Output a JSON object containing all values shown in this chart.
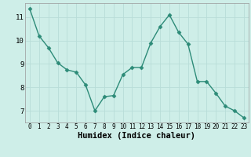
{
  "x": [
    0,
    1,
    2,
    3,
    4,
    5,
    6,
    7,
    8,
    9,
    10,
    11,
    12,
    13,
    14,
    15,
    16,
    17,
    18,
    19,
    20,
    21,
    22,
    23
  ],
  "y": [
    11.35,
    10.2,
    9.7,
    9.05,
    8.75,
    8.65,
    8.1,
    7.0,
    7.6,
    7.65,
    8.55,
    8.85,
    8.85,
    9.9,
    10.6,
    11.1,
    10.35,
    9.85,
    8.25,
    8.25,
    7.75,
    7.2,
    7.0,
    6.7
  ],
  "line_color": "#2d8b78",
  "marker": "D",
  "markersize": 2.5,
  "linewidth": 1.0,
  "xlabel": "Humidex (Indice chaleur)",
  "xlabel_fontsize": 7.5,
  "xlim": [
    -0.5,
    23.5
  ],
  "ylim": [
    6.5,
    11.6
  ],
  "yticks": [
    7,
    8,
    9,
    10,
    11
  ],
  "xticks": [
    0,
    1,
    2,
    3,
    4,
    5,
    6,
    7,
    8,
    9,
    10,
    11,
    12,
    13,
    14,
    15,
    16,
    17,
    18,
    19,
    20,
    21,
    22,
    23
  ],
  "xtick_fontsize": 5.5,
  "ytick_fontsize": 6.5,
  "bg_color": "#ceeee8",
  "grid_color": "#b8ddd8",
  "grid_linewidth": 0.6
}
